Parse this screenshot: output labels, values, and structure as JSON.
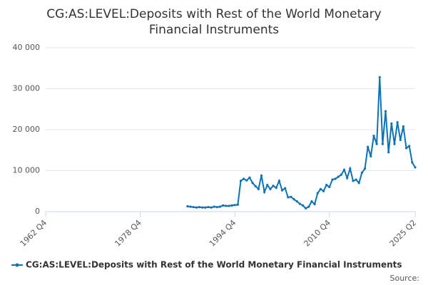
{
  "chart_data": {
    "type": "line",
    "title": "CG:AS:LEVEL:Deposits with Rest of the World Monetary Financial Instruments",
    "source": "Source:",
    "x": [
      "1986 Q4",
      "1987 Q2",
      "1987 Q4",
      "1988 Q2",
      "1988 Q4",
      "1989 Q2",
      "1989 Q4",
      "1990 Q2",
      "1990 Q4",
      "1991 Q2",
      "1991 Q4",
      "1992 Q2",
      "1992 Q4",
      "1993 Q2",
      "1993 Q4",
      "1994 Q2",
      "1994 Q4",
      "1995 Q2",
      "1995 Q4",
      "1996 Q2",
      "1996 Q4",
      "1997 Q2",
      "1997 Q4",
      "1998 Q2",
      "1998 Q4",
      "1999 Q2",
      "1999 Q4",
      "2000 Q2",
      "2000 Q4",
      "2001 Q2",
      "2001 Q4",
      "2002 Q2",
      "2002 Q4",
      "2003 Q2",
      "2003 Q4",
      "2004 Q2",
      "2004 Q4",
      "2005 Q2",
      "2005 Q4",
      "2006 Q2",
      "2006 Q4",
      "2007 Q2",
      "2007 Q4",
      "2008 Q2",
      "2008 Q4",
      "2009 Q2",
      "2009 Q4",
      "2010 Q2",
      "2010 Q4",
      "2011 Q2",
      "2011 Q4",
      "2012 Q2",
      "2012 Q4",
      "2013 Q2",
      "2013 Q4",
      "2014 Q2",
      "2014 Q4",
      "2015 Q2",
      "2015 Q4",
      "2016 Q2",
      "2016 Q4",
      "2017 Q2",
      "2017 Q4",
      "2018 Q2",
      "2018 Q4",
      "2019 Q2",
      "2019 Q4",
      "2020 Q2",
      "2020 Q4",
      "2021 Q2",
      "2021 Q4",
      "2022 Q2",
      "2022 Q4",
      "2023 Q2",
      "2023 Q4",
      "2024 Q2",
      "2024 Q4",
      "2025 Q2"
    ],
    "series": [
      {
        "name": "CG:AS:LEVEL:Deposits with Rest of the World Monetary Financial Instruments",
        "color": "#0b72b5",
        "values": [
          1300,
          1200,
          1100,
          1000,
          1100,
          1000,
          1000,
          1100,
          1000,
          1200,
          1100,
          1200,
          1500,
          1400,
          1400,
          1500,
          1600,
          1700,
          7500,
          8000,
          7600,
          8300,
          7000,
          6200,
          5500,
          8800,
          4800,
          6500,
          5500,
          6300,
          5800,
          7500,
          5200,
          5700,
          3500,
          3600,
          3000,
          2500,
          1900,
          1500,
          800,
          1200,
          2500,
          1800,
          4500,
          5500,
          5000,
          6500,
          6000,
          7800,
          8000,
          8500,
          9000,
          10200,
          8200,
          10500,
          7500,
          7800,
          7000,
          9500,
          10500,
          15800,
          13500,
          18500,
          16500,
          32800,
          16500,
          24500,
          14500,
          21500,
          16500,
          21800,
          17500,
          20800,
          15500,
          16000,
          12000,
          10800
        ]
      }
    ],
    "xlim": [
      "1962 Q4",
      "2025 Q2"
    ],
    "xticks": [
      "1962 Q4",
      "1978 Q4",
      "1994 Q4",
      "2010 Q4",
      "2025 Q2"
    ],
    "ylim": [
      0,
      40000
    ],
    "yticks": [
      0,
      {
        "value": 10000,
        "label": "10 000"
      },
      {
        "value": 20000,
        "label": "20 000"
      },
      {
        "value": 30000,
        "label": "30 000"
      },
      {
        "value": 40000,
        "label": "40 000"
      }
    ],
    "grid": true
  }
}
